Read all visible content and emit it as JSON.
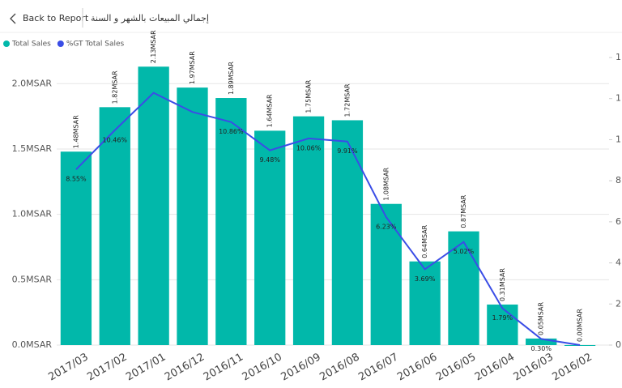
{
  "back_button": "Back to Report",
  "chart_data": {
    "type": "combo",
    "title": "إجمالي المبيعات بالشهر و السنة",
    "categories": [
      "2017/03",
      "2017/02",
      "2017/01",
      "2016/12",
      "2016/11",
      "2016/10",
      "2016/09",
      "2016/08",
      "2016/07",
      "2016/06",
      "2016/05",
      "2016/04",
      "2016/03",
      "2016/02"
    ],
    "series": [
      {
        "name": "Total Sales",
        "type": "bar",
        "color": "#01b8aa",
        "values": [
          1.48,
          1.82,
          2.13,
          1.97,
          1.89,
          1.64,
          1.75,
          1.72,
          1.08,
          0.64,
          0.87,
          0.31,
          0.05,
          0.0
        ],
        "value_labels": [
          "1.48MSAR",
          "1.82MSAR",
          "2.13MSAR",
          "1.97MSAR",
          "1.89MSAR",
          "1.64MSAR",
          "1.75MSAR",
          "1.72MSAR",
          "1.08MSAR",
          "0.64MSAR",
          "0.87MSAR",
          "0.31MSAR",
          "0.05MSAR",
          "0.00MSAR"
        ]
      },
      {
        "name": "%GT Total Sales",
        "type": "line",
        "axis": "y2",
        "color": "#3a4de6",
        "values": [
          8.55,
          10.46,
          12.28,
          11.35,
          10.86,
          9.48,
          10.06,
          9.91,
          6.23,
          3.69,
          5.02,
          1.79,
          0.3,
          0.0
        ],
        "value_labels": [
          "8.55%",
          "10.46%",
          null,
          null,
          "10.86%",
          "9.48%",
          "10.06%",
          "9.91%",
          "6.23%",
          "3.69%",
          "5.02%",
          "1.79%",
          "0.30%",
          null
        ]
      }
    ],
    "ylim": [
      0,
      2.2
    ],
    "yticks": [
      {
        "value": 0,
        "label": "0.0MSAR"
      },
      {
        "value": 0.5,
        "label": "0.5MSAR"
      },
      {
        "value": 1.0,
        "label": "1.0MSAR"
      },
      {
        "value": 1.5,
        "label": "1.5MSAR"
      },
      {
        "value": 2.0,
        "label": "2.0MSAR"
      }
    ],
    "y2lim": [
      0,
      14
    ],
    "y2ticks": [
      0,
      2,
      4,
      6,
      8,
      {
        "value": 10,
        "label": "1"
      },
      {
        "value": 12,
        "label": "1"
      },
      {
        "value": 14,
        "label": "1"
      }
    ],
    "grid": true
  }
}
